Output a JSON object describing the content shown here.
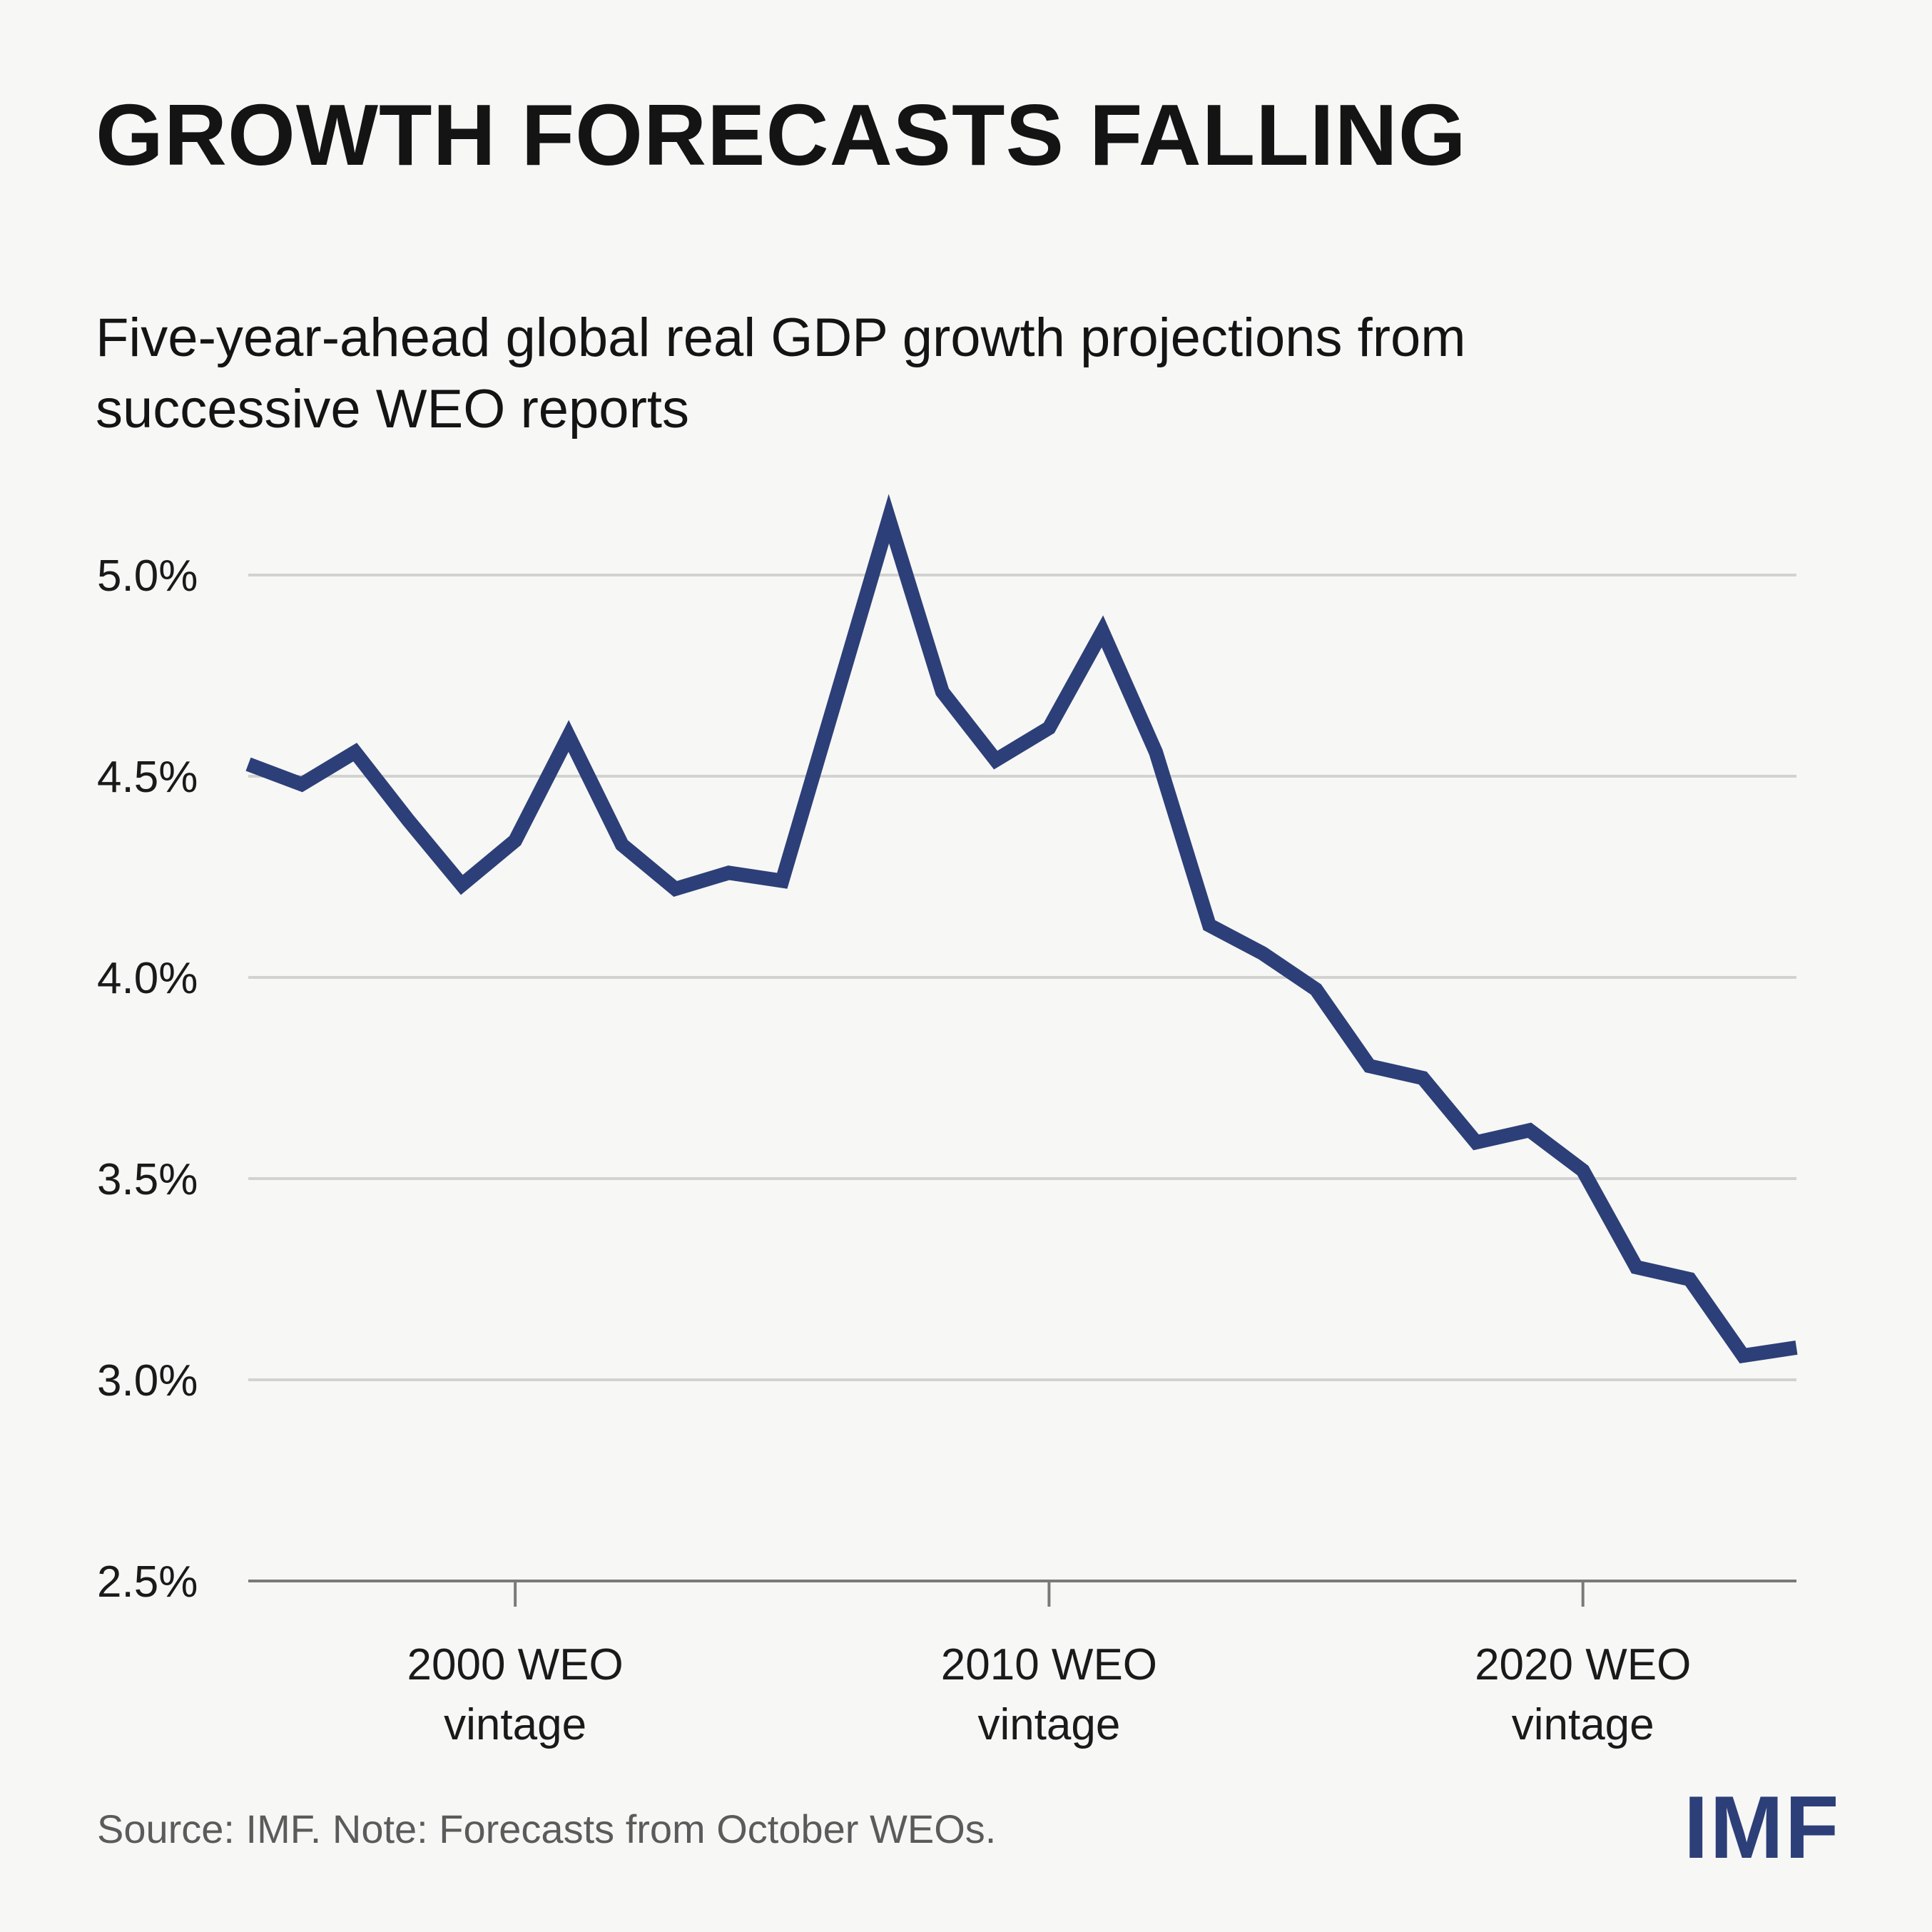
{
  "header": {
    "title": "GROWTH FORECASTS FALLING",
    "subtitle": "Five-year-ahead global real GDP growth projections from successive WEO reports"
  },
  "footer": {
    "source": "Source: IMF. Note: Forecasts from October WEOs.",
    "logo": "IMF"
  },
  "colors": {
    "line": "#2d3f78",
    "grid": "#d2d2d0",
    "axis": "#7a7a7a",
    "background": "#f7f7f5"
  },
  "chart_data": {
    "type": "line",
    "title": "GROWTH FORECASTS FALLING",
    "subtitle": "Five-year-ahead global real GDP growth projections from successive WEO reports",
    "xlabel": "",
    "ylabel": "",
    "xlim": [
      1995,
      2024
    ],
    "ylim": [
      2.5,
      5.0
    ],
    "grid": true,
    "y_ticks": [
      {
        "value": 2.5,
        "label": "2.5%"
      },
      {
        "value": 3.0,
        "label": "3.0%"
      },
      {
        "value": 3.5,
        "label": "3.5%"
      },
      {
        "value": 4.0,
        "label": "4.0%"
      },
      {
        "value": 4.5,
        "label": "4.5%"
      },
      {
        "value": 5.0,
        "label": "5.0%"
      }
    ],
    "x_ticks": [
      {
        "value": 2000,
        "label_line1": "2000 WEO",
        "label_line2": "vintage"
      },
      {
        "value": 2010,
        "label_line1": "2010 WEO",
        "label_line2": "vintage"
      },
      {
        "value": 2020,
        "label_line1": "2020 WEO",
        "label_line2": "vintage"
      }
    ],
    "series": [
      {
        "name": "Five-year-ahead global real GDP growth projection",
        "x": [
          1995,
          1996,
          1997,
          1998,
          1999,
          2000,
          2001,
          2002,
          2003,
          2004,
          2005,
          2006,
          2007,
          2008,
          2009,
          2010,
          2011,
          2012,
          2013,
          2014,
          2015,
          2016,
          2017,
          2018,
          2019,
          2020,
          2021,
          2022,
          2023,
          2024
        ],
        "values": [
          4.53,
          4.48,
          4.56,
          4.39,
          4.23,
          4.34,
          4.6,
          4.33,
          4.22,
          4.26,
          4.24,
          4.69,
          5.14,
          4.71,
          4.54,
          4.62,
          4.86,
          4.56,
          4.13,
          4.06,
          3.97,
          3.78,
          3.75,
          3.59,
          3.62,
          3.52,
          3.28,
          3.25,
          3.06,
          3.08
        ]
      }
    ]
  }
}
